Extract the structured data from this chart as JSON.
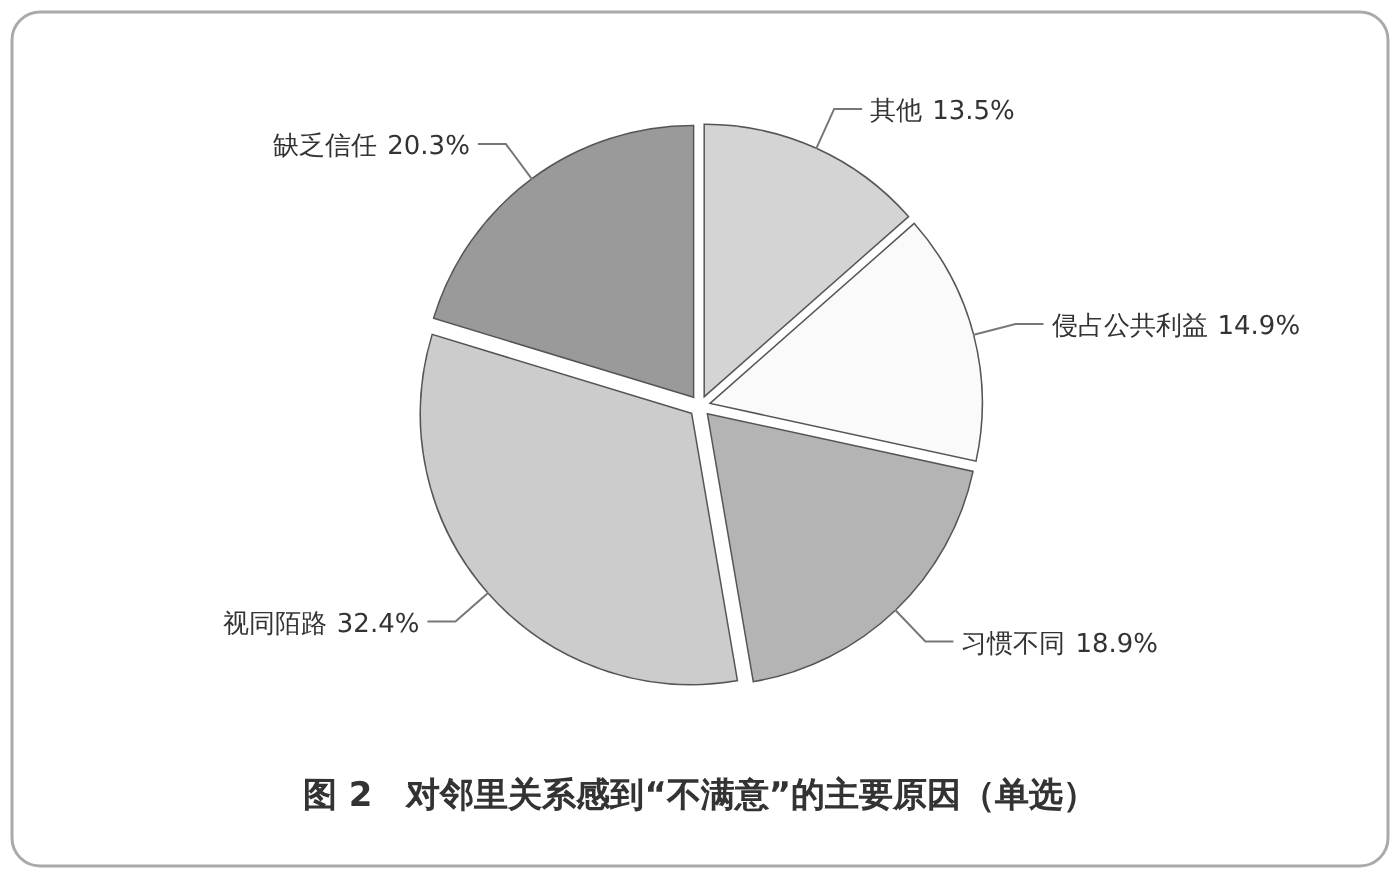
{
  "chart_data": {
    "type": "pie",
    "title": "图 2　对邻里关系感到“不满意”的主要原因（单选）",
    "categories": [
      "其他",
      "侵占公共利益",
      "习惯不同",
      "视同陌路",
      "缺乏信任"
    ],
    "values": [
      13.5,
      14.9,
      18.9,
      32.4,
      20.3
    ],
    "colors": [
      "#d4d4d4",
      "#fafafa",
      "#b4b4b4",
      "#cccccc",
      "#9a9a9a"
    ],
    "value_labels": [
      "13.5%",
      "14.9%",
      "18.9%",
      "32.4%",
      "20.3%"
    ]
  }
}
